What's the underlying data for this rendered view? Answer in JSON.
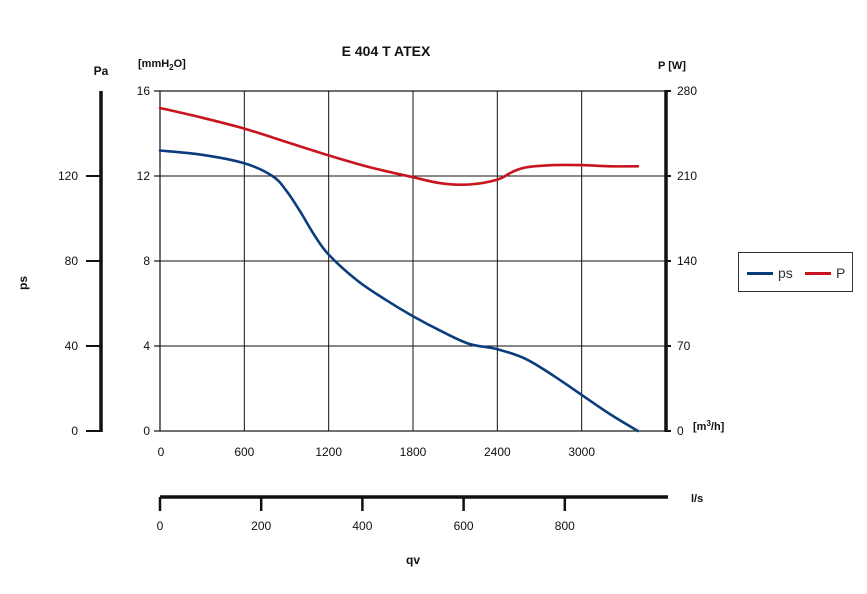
{
  "chart_data": {
    "type": "line",
    "title": "E 404 T ATEX",
    "colors": {
      "ps": "#0b3d7e",
      "P": "#c8141e",
      "grid": "#111111"
    },
    "x_axis": {
      "label": "[m³/h]",
      "range": [
        0,
        3600
      ],
      "ticks": [
        "0",
        "600",
        "1200",
        "1800",
        "2400",
        "3000"
      ]
    },
    "x2_axis": {
      "unit": "l/s",
      "range": [
        0,
        1000
      ],
      "ticks": [
        "0",
        "200",
        "400",
        "600",
        "800"
      ],
      "label": "qv"
    },
    "y_left_axis": {
      "label": "[mmH₂O]",
      "range": [
        0,
        16
      ],
      "ticks": [
        "0",
        "4",
        "8",
        "12",
        "16"
      ]
    },
    "y_pa_axis": {
      "unit": "Pa",
      "ticks": [
        "0",
        "40",
        "80",
        "120"
      ],
      "label": "ps"
    },
    "y_right_axis": {
      "label": "P [W]",
      "range": [
        0,
        280
      ],
      "ticks": [
        "0",
        "70",
        "140",
        "210",
        "280"
      ]
    },
    "legend_position": "right",
    "series": [
      {
        "name": "ps",
        "axis": "left",
        "x": [
          0,
          300,
          600,
          800,
          900,
          1000,
          1100,
          1200,
          1400,
          1600,
          1800,
          2000,
          2200,
          2400,
          2600,
          2800,
          3000,
          3200,
          3400
        ],
        "y": [
          13.2,
          13.0,
          12.6,
          12.0,
          11.3,
          10.3,
          9.2,
          8.3,
          7.1,
          6.2,
          5.4,
          4.7,
          4.1,
          3.85,
          3.4,
          2.6,
          1.7,
          0.8,
          0.0
        ]
      },
      {
        "name": "P",
        "axis": "right",
        "x": [
          0,
          300,
          600,
          900,
          1200,
          1500,
          1800,
          2000,
          2200,
          2400,
          2500,
          2600,
          2800,
          3000,
          3200,
          3400
        ],
        "y": [
          266,
          258,
          249,
          238,
          227,
          217,
          209,
          204,
          203,
          207,
          213,
          217,
          219,
          219,
          218,
          218
        ]
      }
    ]
  }
}
